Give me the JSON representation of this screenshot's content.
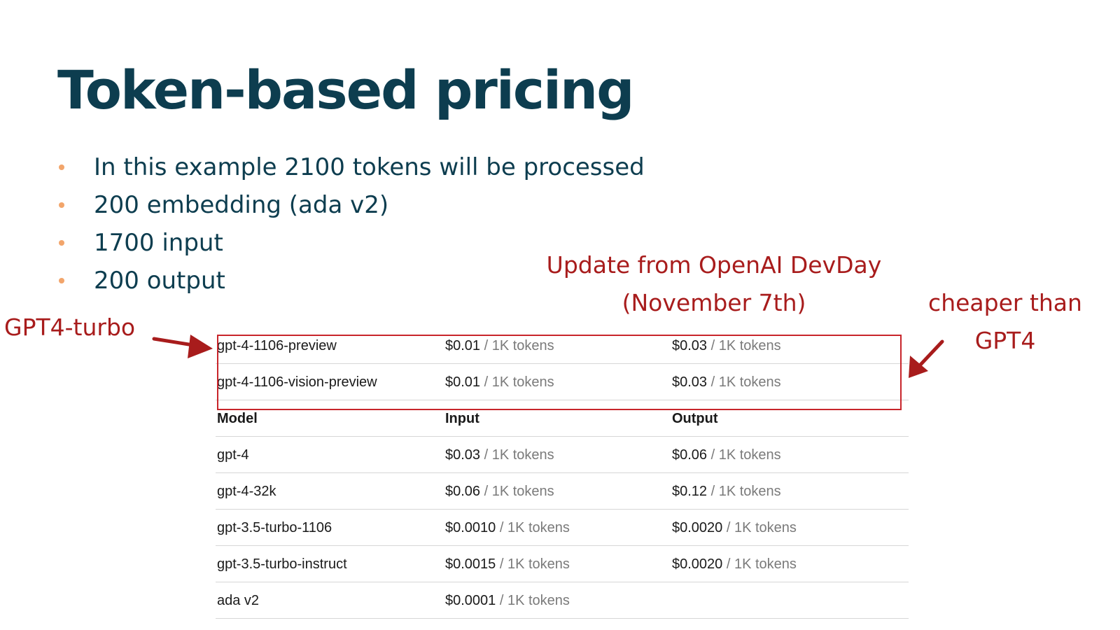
{
  "title": "Token-based pricing",
  "bullets": [
    "In this example 2100 tokens will be processed",
    "200 embedding (ada v2)",
    "1700 input",
    "200 output"
  ],
  "annotations": {
    "update_line1": "Update from OpenAI DevDay",
    "update_line2": "(November 7th)",
    "cheaper_line1": "cheaper than",
    "cheaper_line2": "GPT4",
    "turbo_label": "GPT4-turbo"
  },
  "colors": {
    "title": "#0d3d4f",
    "bullet_dot": "#f2a56b",
    "annotation": "#a81c1c",
    "highlight_border": "#c8252b"
  },
  "highlighted_rows": [
    {
      "model": "gpt-4-1106-preview",
      "input_price": "$0.01",
      "input_unit": " / 1K tokens",
      "output_price": "$0.03",
      "output_unit": " / 1K tokens"
    },
    {
      "model": "gpt-4-1106-vision-preview",
      "input_price": "$0.01",
      "input_unit": " / 1K tokens",
      "output_price": "$0.03",
      "output_unit": " / 1K tokens"
    }
  ],
  "table_headers": {
    "model": "Model",
    "input": "Input",
    "output": "Output"
  },
  "rows": [
    {
      "model": "gpt-4",
      "input_price": "$0.03",
      "input_unit": " / 1K tokens",
      "output_price": "$0.06",
      "output_unit": " / 1K tokens"
    },
    {
      "model": "gpt-4-32k",
      "input_price": "$0.06",
      "input_unit": " / 1K tokens",
      "output_price": "$0.12",
      "output_unit": " / 1K tokens"
    },
    {
      "model": "gpt-3.5-turbo-1106",
      "input_price": "$0.0010",
      "input_unit": " / 1K tokens",
      "output_price": "$0.0020",
      "output_unit": " / 1K tokens"
    },
    {
      "model": "gpt-3.5-turbo-instruct",
      "input_price": "$0.0015",
      "input_unit": " / 1K tokens",
      "output_price": "$0.0020",
      "output_unit": " / 1K tokens"
    },
    {
      "model": "ada v2",
      "input_price": "$0.0001",
      "input_unit": " / 1K tokens",
      "output_price": "",
      "output_unit": ""
    }
  ]
}
